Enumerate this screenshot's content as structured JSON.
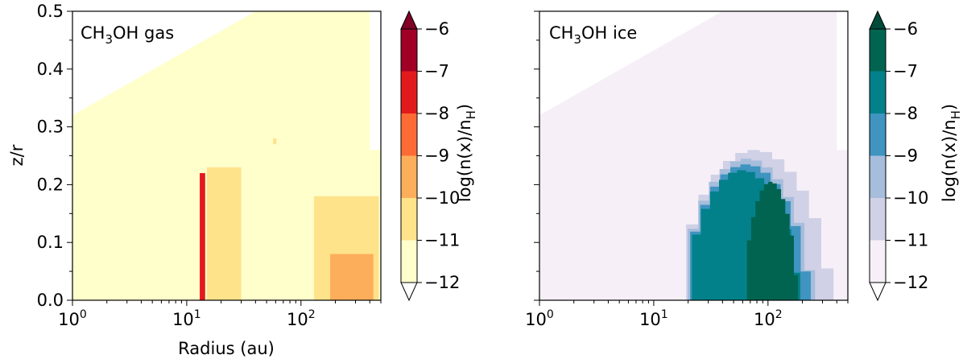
{
  "chart_data": [
    {
      "type": "heatmap",
      "label": "CH3OH gas",
      "label_main": "CH",
      "label_sub": "3",
      "label_rest": "OH gas",
      "xlabel": "Radius (au)",
      "ylabel": "z/r",
      "xscale": "log",
      "xlim": [
        1,
        500
      ],
      "ylim": [
        0,
        0.5
      ],
      "xticks": [
        {
          "v": 1,
          "base": "10",
          "exp": "0"
        },
        {
          "v": 10,
          "base": "10",
          "exp": "1"
        },
        {
          "v": 100,
          "base": "10",
          "exp": "2"
        }
      ],
      "yticks": [
        "0.0",
        "0.1",
        "0.2",
        "0.3",
        "0.4",
        "0.5"
      ],
      "background_level": -11.5,
      "regions": [
        {
          "level": -11.5,
          "r": [
            1,
            500
          ],
          "z": [
            0,
            0.5
          ],
          "note": "upper-left white (no data) above envelope"
        },
        {
          "level": -10.7,
          "r": [
            15,
            30
          ],
          "z": [
            0,
            0.23
          ]
        },
        {
          "level": -10.5,
          "r": [
            130,
            480
          ],
          "z": [
            0,
            0.18
          ]
        },
        {
          "level": -10.0,
          "r": [
            180,
            430
          ],
          "z": [
            0,
            0.08
          ]
        },
        {
          "level": -10.2,
          "r": [
            57,
            61
          ],
          "z": [
            0.27,
            0.28
          ]
        },
        {
          "level": -10.2,
          "r": [
            19.5,
            21
          ],
          "z": [
            0.18,
            0.19
          ]
        },
        {
          "level": -7.5,
          "r": [
            13,
            14.5
          ],
          "z": [
            0,
            0.22
          ]
        }
      ],
      "colorbar": {
        "label": "log(n(x)/n",
        "label_sub": "H",
        "label_end": ")",
        "ticks": [
          "−6",
          "−7",
          "−8",
          "−9",
          "−10",
          "−11",
          "−12"
        ],
        "levels": [
          -12,
          -11,
          -10,
          -9,
          -8,
          -7,
          -6
        ],
        "colors": [
          "#ffffcc",
          "#fee38b",
          "#fdae5b",
          "#fc6b34",
          "#e31a1c",
          "#a10026"
        ],
        "under": "#ffffff",
        "over": "#800026"
      }
    },
    {
      "type": "heatmap",
      "label": "CH3OH ice",
      "label_main": "CH",
      "label_sub": "3",
      "label_rest": "OH ice",
      "xlabel": "",
      "ylabel": "",
      "xscale": "log",
      "xlim": [
        1,
        500
      ],
      "ylim": [
        0,
        0.5
      ],
      "xticks": [
        {
          "v": 1,
          "base": "10",
          "exp": "0"
        },
        {
          "v": 10,
          "base": "10",
          "exp": "1"
        },
        {
          "v": 100,
          "base": "10",
          "exp": "2"
        }
      ],
      "yticks": [],
      "background_level": -11.5,
      "regions": [
        {
          "level": -10.5,
          "r": [
            15,
            480
          ],
          "z": [
            0,
            0.26
          ]
        },
        {
          "level": -9.5,
          "r": [
            16,
            320
          ],
          "z": [
            0,
            0.245
          ]
        },
        {
          "level": -8.5,
          "r": [
            17,
            290
          ],
          "z": [
            0,
            0.235
          ]
        },
        {
          "level": -7.5,
          "r": [
            18,
            230
          ],
          "z": [
            0,
            0.225
          ]
        },
        {
          "level": -6.5,
          "r": [
            60,
            200
          ],
          "z": [
            0,
            0.205
          ]
        }
      ],
      "colorbar": {
        "label": "log(n(x)/n",
        "label_sub": "H",
        "label_end": ")",
        "ticks": [
          "−6",
          "−7",
          "−8",
          "−9",
          "−10",
          "−11",
          "−12"
        ],
        "levels": [
          -12,
          -11,
          -10,
          -9,
          -8,
          -7,
          -6
        ],
        "colors": [
          "#f6eff7",
          "#d0d1e6",
          "#a6bddb",
          "#3f94c0",
          "#02818a",
          "#016450"
        ],
        "under": "#ffffff",
        "over": "#004a3a"
      }
    }
  ]
}
